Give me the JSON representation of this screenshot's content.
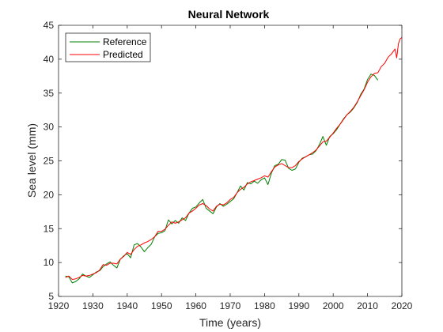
{
  "chart_data": {
    "type": "line",
    "title": "Neural Network",
    "xlabel": "Time (years)",
    "ylabel": "Sea level (mm)",
    "xlim": [
      1920,
      2020
    ],
    "ylim": [
      5,
      45
    ],
    "x_ticks": [
      1920,
      1930,
      1940,
      1950,
      1960,
      1970,
      1980,
      1990,
      2000,
      2010,
      2020
    ],
    "y_ticks": [
      5,
      10,
      15,
      20,
      25,
      30,
      35,
      40,
      45
    ],
    "grid": false,
    "legend": {
      "location": "top-left"
    },
    "series": [
      {
        "name": "Reference",
        "color": "#008000",
        "points": [
          [
            1922,
            8.0
          ],
          [
            1923,
            7.9
          ],
          [
            1924,
            7.0
          ],
          [
            1925,
            7.2
          ],
          [
            1926,
            7.6
          ],
          [
            1927,
            8.3
          ],
          [
            1928,
            8.0
          ],
          [
            1929,
            7.8
          ],
          [
            1930,
            8.2
          ],
          [
            1931,
            8.6
          ],
          [
            1932,
            8.8
          ],
          [
            1933,
            9.4
          ],
          [
            1934,
            9.8
          ],
          [
            1935,
            10.1
          ],
          [
            1936,
            9.6
          ],
          [
            1937,
            9.2
          ],
          [
            1938,
            10.5
          ],
          [
            1939,
            11.0
          ],
          [
            1940,
            11.3
          ],
          [
            1941,
            10.7
          ],
          [
            1942,
            12.6
          ],
          [
            1943,
            12.8
          ],
          [
            1944,
            12.3
          ],
          [
            1945,
            11.6
          ],
          [
            1946,
            12.2
          ],
          [
            1947,
            12.7
          ],
          [
            1948,
            13.8
          ],
          [
            1949,
            14.3
          ],
          [
            1950,
            14.4
          ],
          [
            1951,
            14.7
          ],
          [
            1952,
            16.3
          ],
          [
            1953,
            15.7
          ],
          [
            1954,
            16.2
          ],
          [
            1955,
            15.8
          ],
          [
            1956,
            16.6
          ],
          [
            1957,
            16.2
          ],
          [
            1958,
            17.3
          ],
          [
            1959,
            18.0
          ],
          [
            1960,
            18.2
          ],
          [
            1961,
            18.8
          ],
          [
            1962,
            19.3
          ],
          [
            1963,
            18.0
          ],
          [
            1964,
            17.6
          ],
          [
            1965,
            17.2
          ],
          [
            1966,
            18.2
          ],
          [
            1967,
            18.7
          ],
          [
            1968,
            18.3
          ],
          [
            1969,
            18.6
          ],
          [
            1970,
            19.0
          ],
          [
            1971,
            19.4
          ],
          [
            1972,
            20.3
          ],
          [
            1973,
            21.3
          ],
          [
            1974,
            20.7
          ],
          [
            1975,
            21.8
          ],
          [
            1976,
            21.6
          ],
          [
            1977,
            22.0
          ],
          [
            1978,
            21.7
          ],
          [
            1979,
            22.2
          ],
          [
            1980,
            22.5
          ],
          [
            1981,
            21.5
          ],
          [
            1982,
            23.2
          ],
          [
            1983,
            24.3
          ],
          [
            1984,
            24.5
          ],
          [
            1985,
            25.2
          ],
          [
            1986,
            25.1
          ],
          [
            1987,
            23.9
          ],
          [
            1988,
            23.6
          ],
          [
            1989,
            23.8
          ],
          [
            1990,
            24.8
          ],
          [
            1991,
            25.4
          ],
          [
            1992,
            25.6
          ],
          [
            1993,
            25.9
          ],
          [
            1994,
            26.0
          ],
          [
            1995,
            26.5
          ],
          [
            1996,
            27.4
          ],
          [
            1997,
            28.6
          ],
          [
            1998,
            27.3
          ],
          [
            1999,
            28.6
          ],
          [
            2000,
            29.0
          ],
          [
            2001,
            29.6
          ],
          [
            2002,
            30.4
          ],
          [
            2003,
            31.2
          ],
          [
            2004,
            31.8
          ],
          [
            2005,
            32.2
          ],
          [
            2006,
            32.8
          ],
          [
            2007,
            33.6
          ],
          [
            2008,
            34.8
          ],
          [
            2009,
            35.6
          ],
          [
            2010,
            37.0
          ],
          [
            2011,
            37.8
          ],
          [
            2012,
            37.6
          ],
          [
            2013,
            36.9
          ]
        ]
      },
      {
        "name": "Predicted",
        "color": "#ff0000",
        "points": [
          [
            1922,
            7.8
          ],
          [
            1923,
            8.0
          ],
          [
            1924,
            7.5
          ],
          [
            1925,
            7.6
          ],
          [
            1926,
            7.8
          ],
          [
            1927,
            8.1
          ],
          [
            1928,
            8.0
          ],
          [
            1929,
            8.1
          ],
          [
            1930,
            8.3
          ],
          [
            1931,
            8.5
          ],
          [
            1932,
            8.9
          ],
          [
            1933,
            9.7
          ],
          [
            1934,
            9.6
          ],
          [
            1935,
            9.9
          ],
          [
            1936,
            9.9
          ],
          [
            1937,
            9.8
          ],
          [
            1938,
            10.5
          ],
          [
            1939,
            10.9
          ],
          [
            1940,
            11.5
          ],
          [
            1941,
            11.2
          ],
          [
            1942,
            11.9
          ],
          [
            1943,
            12.4
          ],
          [
            1944,
            12.6
          ],
          [
            1945,
            12.9
          ],
          [
            1946,
            13.1
          ],
          [
            1947,
            13.4
          ],
          [
            1948,
            13.8
          ],
          [
            1949,
            14.6
          ],
          [
            1950,
            14.6
          ],
          [
            1951,
            14.9
          ],
          [
            1952,
            15.5
          ],
          [
            1953,
            16.0
          ],
          [
            1954,
            15.8
          ],
          [
            1955,
            16.0
          ],
          [
            1956,
            16.3
          ],
          [
            1957,
            16.6
          ],
          [
            1958,
            17.3
          ],
          [
            1959,
            17.6
          ],
          [
            1960,
            18.0
          ],
          [
            1961,
            18.5
          ],
          [
            1962,
            18.7
          ],
          [
            1963,
            18.4
          ],
          [
            1964,
            17.9
          ],
          [
            1965,
            17.6
          ],
          [
            1966,
            18.3
          ],
          [
            1967,
            18.6
          ],
          [
            1968,
            18.5
          ],
          [
            1969,
            18.8
          ],
          [
            1970,
            19.3
          ],
          [
            1971,
            19.6
          ],
          [
            1972,
            20.3
          ],
          [
            1973,
            20.8
          ],
          [
            1974,
            21.1
          ],
          [
            1975,
            21.6
          ],
          [
            1976,
            21.9
          ],
          [
            1977,
            22.1
          ],
          [
            1978,
            22.3
          ],
          [
            1979,
            22.5
          ],
          [
            1980,
            22.8
          ],
          [
            1981,
            22.6
          ],
          [
            1982,
            23.4
          ],
          [
            1983,
            24.1
          ],
          [
            1984,
            24.4
          ],
          [
            1985,
            24.6
          ],
          [
            1986,
            24.3
          ],
          [
            1987,
            24.0
          ],
          [
            1988,
            24.0
          ],
          [
            1989,
            24.3
          ],
          [
            1990,
            24.9
          ],
          [
            1991,
            25.3
          ],
          [
            1992,
            25.6
          ],
          [
            1993,
            25.9
          ],
          [
            1994,
            26.2
          ],
          [
            1995,
            26.6
          ],
          [
            1996,
            27.2
          ],
          [
            1997,
            27.8
          ],
          [
            1998,
            27.9
          ],
          [
            1999,
            28.5
          ],
          [
            2000,
            29.1
          ],
          [
            2001,
            29.8
          ],
          [
            2002,
            30.4
          ],
          [
            2003,
            31.1
          ],
          [
            2004,
            31.8
          ],
          [
            2005,
            32.3
          ],
          [
            2006,
            32.9
          ],
          [
            2007,
            33.7
          ],
          [
            2008,
            34.6
          ],
          [
            2009,
            35.5
          ],
          [
            2010,
            36.6
          ],
          [
            2011,
            37.4
          ],
          [
            2012,
            37.9
          ],
          [
            2013,
            38.0
          ],
          [
            2014,
            38.9
          ],
          [
            2015,
            39.4
          ],
          [
            2016,
            40.3
          ],
          [
            2017,
            40.8
          ],
          [
            2018,
            41.5
          ],
          [
            2018.5,
            40.2
          ],
          [
            2019,
            42.3
          ],
          [
            2019.5,
            43.0
          ],
          [
            2020,
            43.2
          ]
        ]
      }
    ]
  }
}
